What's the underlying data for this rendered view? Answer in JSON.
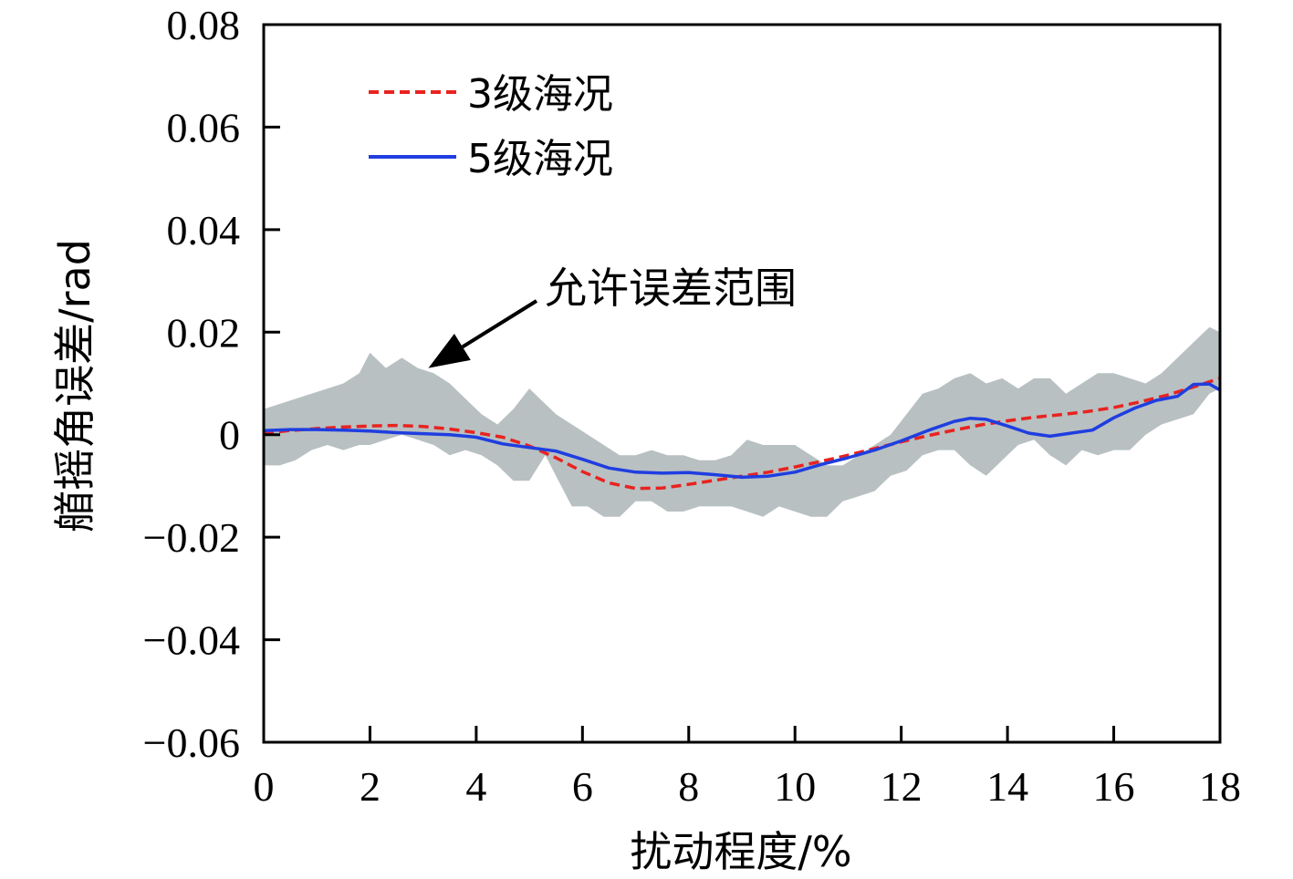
{
  "chart_data": {
    "type": "line",
    "xlabel": "扰动程度/%",
    "ylabel": "艏摇角误差/rad",
    "xlim": [
      0,
      18
    ],
    "ylim": [
      -0.06,
      0.08
    ],
    "x_ticks": [
      0,
      2,
      4,
      6,
      8,
      10,
      12,
      14,
      16,
      18
    ],
    "y_ticks": [
      0.08,
      0.06,
      0.04,
      0.02,
      0,
      -0.02,
      -0.04,
      -0.06
    ],
    "x_tick_labels": [
      "0",
      "2",
      "4",
      "6",
      "8",
      "10",
      "12",
      "14",
      "16",
      "18"
    ],
    "y_tick_labels": [
      "0.08",
      "0.06",
      "0.04",
      "0.02",
      "0",
      "−0.02",
      "−0.04",
      "−0.06"
    ],
    "grid": false,
    "legend_position": "top-left",
    "annotation": {
      "text": "允许误差范围",
      "points_to": [
        3.1,
        0.013
      ]
    },
    "band": {
      "color": "#b8c0c2",
      "x": [
        0,
        0.3,
        0.6,
        0.9,
        1.2,
        1.5,
        1.8,
        2.0,
        2.3,
        2.6,
        2.9,
        3.2,
        3.5,
        3.8,
        4.1,
        4.4,
        4.7,
        5.0,
        5.3,
        5.5,
        5.8,
        6.1,
        6.4,
        6.7,
        7.0,
        7.3,
        7.6,
        7.9,
        8.2,
        8.5,
        8.8,
        9.1,
        9.4,
        9.7,
        10.0,
        10.3,
        10.6,
        10.9,
        11.2,
        11.5,
        11.8,
        12.1,
        12.4,
        12.7,
        13.0,
        13.3,
        13.6,
        13.9,
        14.2,
        14.5,
        14.8,
        15.1,
        15.4,
        15.7,
        16.0,
        16.3,
        16.6,
        16.9,
        17.2,
        17.5,
        17.8,
        18.0
      ],
      "upper": [
        0.005,
        0.006,
        0.007,
        0.008,
        0.009,
        0.01,
        0.012,
        0.016,
        0.013,
        0.015,
        0.013,
        0.012,
        0.01,
        0.007,
        0.004,
        0.002,
        0.005,
        0.009,
        0.006,
        0.004,
        0.002,
        0.0,
        -0.002,
        -0.004,
        -0.004,
        -0.003,
        -0.004,
        -0.004,
        -0.005,
        -0.005,
        -0.004,
        -0.001,
        -0.002,
        -0.002,
        -0.002,
        -0.004,
        -0.006,
        -0.006,
        -0.004,
        -0.002,
        0.0,
        0.004,
        0.008,
        0.009,
        0.011,
        0.012,
        0.01,
        0.011,
        0.009,
        0.011,
        0.011,
        0.008,
        0.01,
        0.012,
        0.012,
        0.011,
        0.01,
        0.012,
        0.015,
        0.018,
        0.021,
        0.02
      ],
      "lower": [
        -0.006,
        -0.006,
        -0.005,
        -0.003,
        -0.002,
        -0.003,
        -0.002,
        -0.002,
        -0.001,
        0.0,
        -0.001,
        -0.002,
        -0.004,
        -0.003,
        -0.004,
        -0.006,
        -0.009,
        -0.009,
        -0.004,
        -0.008,
        -0.014,
        -0.014,
        -0.016,
        -0.016,
        -0.013,
        -0.013,
        -0.015,
        -0.015,
        -0.014,
        -0.014,
        -0.014,
        -0.015,
        -0.016,
        -0.014,
        -0.015,
        -0.016,
        -0.016,
        -0.013,
        -0.012,
        -0.011,
        -0.008,
        -0.007,
        -0.004,
        -0.003,
        -0.003,
        -0.006,
        -0.008,
        -0.005,
        -0.002,
        -0.001,
        -0.004,
        -0.006,
        -0.003,
        -0.004,
        -0.003,
        -0.003,
        0.0,
        0.002,
        0.003,
        0.004,
        0.008,
        0.009
      ]
    },
    "series": [
      {
        "name": "3级海况",
        "color": "#e8231f",
        "style": "dashed",
        "x": [
          0,
          0.5,
          1,
          1.5,
          2,
          2.5,
          3,
          3.5,
          4,
          4.5,
          5,
          5.5,
          6,
          6.5,
          7,
          7.5,
          8,
          8.5,
          9,
          9.5,
          10,
          10.5,
          11,
          11.5,
          12,
          12.5,
          13,
          13.5,
          14,
          14.5,
          15,
          15.5,
          16,
          16.5,
          17,
          17.5,
          18
        ],
        "y": [
          0.0003,
          0.0008,
          0.0012,
          0.0015,
          0.0017,
          0.0018,
          0.0016,
          0.0011,
          0.0004,
          -0.0005,
          -0.0022,
          -0.0045,
          -0.0072,
          -0.0094,
          -0.0105,
          -0.0104,
          -0.0097,
          -0.0089,
          -0.0081,
          -0.0073,
          -0.0063,
          -0.0052,
          -0.004,
          -0.0027,
          -0.0014,
          -0.0002,
          0.0009,
          0.0019,
          0.0027,
          0.0034,
          0.0039,
          0.0045,
          0.0053,
          0.0064,
          0.0077,
          0.0093,
          0.011
        ]
      },
      {
        "name": "5级海况",
        "color": "#1f3ee0",
        "style": "solid",
        "x": [
          0,
          0.5,
          1,
          1.5,
          2,
          2.5,
          3,
          3.5,
          4,
          4.5,
          5,
          5.5,
          6,
          6.5,
          7,
          7.5,
          8,
          8.5,
          9,
          9.5,
          10,
          10.5,
          11,
          11.5,
          12,
          12.5,
          13,
          13.3,
          13.6,
          14,
          14.4,
          14.8,
          15.2,
          15.6,
          16,
          16.4,
          16.8,
          17.2,
          17.5,
          17.8,
          18
        ],
        "y": [
          0.0008,
          0.001,
          0.001,
          0.0009,
          0.0007,
          0.0004,
          0.0002,
          0.0,
          -0.0005,
          -0.0018,
          -0.0025,
          -0.0032,
          -0.0048,
          -0.0065,
          -0.0073,
          -0.0075,
          -0.0074,
          -0.0078,
          -0.0083,
          -0.0081,
          -0.0073,
          -0.0058,
          -0.0045,
          -0.003,
          -0.0012,
          0.0008,
          0.0026,
          0.0032,
          0.003,
          0.0017,
          0.0003,
          -0.0003,
          0.0003,
          0.0009,
          0.0033,
          0.0052,
          0.0067,
          0.0075,
          0.0098,
          0.0099,
          0.0087
        ]
      }
    ]
  }
}
